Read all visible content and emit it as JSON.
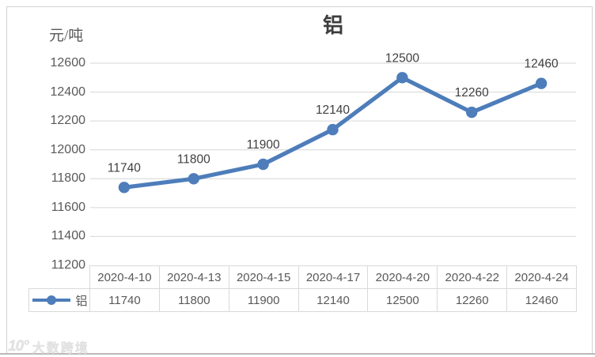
{
  "chart_data": {
    "type": "line",
    "title": "铝",
    "unit_label": "元/吨",
    "categories": [
      "2020-4-10",
      "2020-4-13",
      "2020-4-15",
      "2020-4-17",
      "2020-4-20",
      "2020-4-22",
      "2020-4-24"
    ],
    "series": [
      {
        "name": "铝",
        "values": [
          11740,
          11800,
          11900,
          12140,
          12500,
          12260,
          12460
        ]
      }
    ],
    "ylim": [
      11200,
      12600
    ],
    "ytick_step": 200,
    "ytick_labels": [
      "12600",
      "12400",
      "12200",
      "12000",
      "11800",
      "11600",
      "11400",
      "11200"
    ],
    "grid": true,
    "legend_position": "table-left",
    "data_labels_shown": true,
    "colors": {
      "line": "#4d7dba",
      "grid": "#d6d6d6",
      "axis_text": "#595959",
      "data_label_text": "#404040",
      "table_border": "#d9d9d9"
    }
  },
  "watermark": {
    "logo_text": "10°",
    "brand_text": "大数跨境"
  }
}
